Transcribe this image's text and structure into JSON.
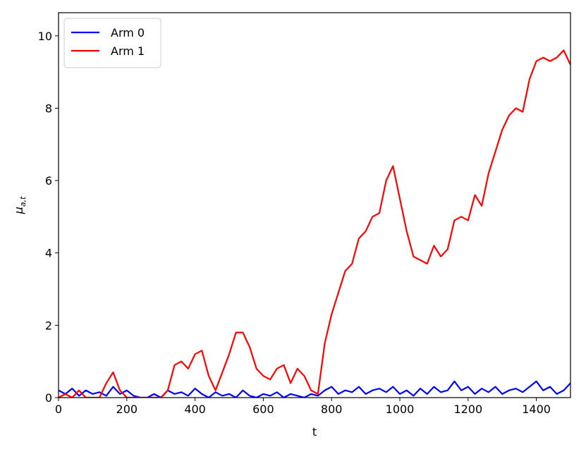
{
  "chart_data": {
    "type": "line",
    "xlabel": "t",
    "ylabel": "μ",
    "ylabel_subscript": "a,t",
    "x": [
      0,
      20,
      40,
      60,
      80,
      100,
      120,
      140,
      160,
      180,
      200,
      220,
      240,
      260,
      280,
      300,
      320,
      340,
      360,
      380,
      400,
      420,
      440,
      460,
      480,
      500,
      520,
      540,
      560,
      580,
      600,
      620,
      640,
      660,
      680,
      700,
      720,
      740,
      760,
      780,
      800,
      820,
      840,
      860,
      880,
      900,
      920,
      940,
      960,
      980,
      1000,
      1020,
      1040,
      1060,
      1080,
      1100,
      1120,
      1140,
      1160,
      1180,
      1200,
      1220,
      1240,
      1260,
      1280,
      1300,
      1320,
      1340,
      1360,
      1380,
      1400,
      1420,
      1440,
      1460,
      1480,
      1500
    ],
    "series": [
      {
        "name": "Arm 0",
        "color": "#0000ff",
        "values": [
          0.2,
          0.1,
          0.25,
          0.05,
          0.2,
          0.1,
          0.15,
          0.05,
          0.3,
          0.1,
          0.2,
          0.05,
          0,
          0,
          0.1,
          0,
          0.2,
          0.1,
          0.15,
          0.05,
          0.25,
          0.1,
          0,
          0.15,
          0.05,
          0.1,
          0,
          0.2,
          0.05,
          0,
          0.1,
          0.05,
          0.15,
          0,
          0.1,
          0.05,
          0,
          0.1,
          0.05,
          0.2,
          0.3,
          0.1,
          0.2,
          0.15,
          0.3,
          0.1,
          0.2,
          0.25,
          0.15,
          0.3,
          0.1,
          0.2,
          0.05,
          0.25,
          0.1,
          0.3,
          0.15,
          0.2,
          0.45,
          0.2,
          0.3,
          0.1,
          0.25,
          0.15,
          0.3,
          0.1,
          0.2,
          0.25,
          0.15,
          0.3,
          0.45,
          0.2,
          0.3,
          0.1,
          0.2,
          0.4
        ]
      },
      {
        "name": "Arm 1",
        "color": "#ff0000",
        "values": [
          0,
          0.1,
          0,
          0.2,
          0,
          0,
          0,
          0.4,
          0.7,
          0.2,
          0,
          0,
          0,
          0,
          0,
          0,
          0.2,
          0.9,
          1.0,
          0.8,
          1.2,
          1.3,
          0.6,
          0.2,
          0.7,
          1.2,
          1.8,
          1.8,
          1.4,
          0.8,
          0.6,
          0.5,
          0.8,
          0.9,
          0.4,
          0.8,
          0.6,
          0.2,
          0.1,
          1.5,
          2.3,
          2.9,
          3.5,
          3.7,
          4.4,
          4.6,
          5.0,
          5.1,
          6.0,
          6.4,
          5.5,
          4.6,
          3.9,
          3.8,
          3.7,
          4.2,
          3.9,
          4.1,
          4.9,
          5.0,
          4.9,
          5.6,
          5.3,
          6.2,
          6.8,
          7.4,
          7.8,
          8.0,
          7.9,
          8.8,
          9.3,
          9.4,
          9.3,
          9.4,
          9.6,
          9.2
        ]
      }
    ],
    "xlim": [
      0,
      1500
    ],
    "ylim": [
      0,
      10.64
    ],
    "xticks": [
      0,
      200,
      400,
      600,
      800,
      1000,
      1200,
      1400
    ],
    "yticks": [
      0,
      2,
      4,
      6,
      8,
      10
    ],
    "legend": "upper left",
    "grid": false
  }
}
